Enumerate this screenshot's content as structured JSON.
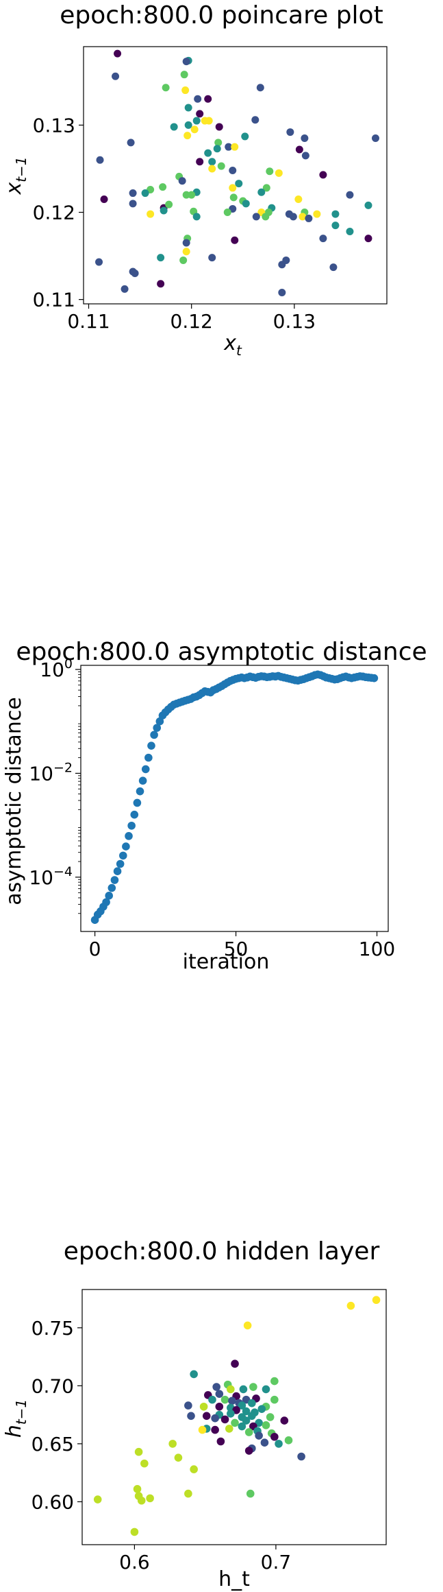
{
  "chart_data": [
    {
      "type": "scatter",
      "title": "epoch:800.0 poincare plot",
      "xlabel": "x_t",
      "ylabel": "x_{t-1}",
      "xlim": [
        0.1095,
        0.139
      ],
      "ylim": [
        0.1095,
        0.139
      ],
      "xticks": [
        "0.11",
        "0.12",
        "0.13"
      ],
      "yticks": [
        "0.11",
        "0.12",
        "0.13"
      ],
      "grid": false,
      "points": [
        [
          0.1128,
          0.1382,
          "#440154"
        ],
        [
          0.1126,
          0.1356,
          "#3b528b"
        ],
        [
          0.1197,
          0.1374,
          "#21918c"
        ],
        [
          0.1195,
          0.1373,
          "#3b528b"
        ],
        [
          0.1193,
          0.1358,
          "#5ec962"
        ],
        [
          0.1175,
          0.1343,
          "#5ec962"
        ],
        [
          0.1194,
          0.134,
          "#fde725"
        ],
        [
          0.1206,
          0.133,
          "#3b528b"
        ],
        [
          0.1216,
          0.133,
          "#440154"
        ],
        [
          0.1197,
          0.132,
          "#21918c"
        ],
        [
          0.1208,
          0.1313,
          "#440154"
        ],
        [
          0.1267,
          0.1343,
          "#3b528b"
        ],
        [
          0.1262,
          0.1306,
          "#3b528b"
        ],
        [
          0.1205,
          0.1305,
          "#21918c"
        ],
        [
          0.1213,
          0.1305,
          "#fde725"
        ],
        [
          0.1197,
          0.13,
          "#21918c"
        ],
        [
          0.1217,
          0.1305,
          "#fde725"
        ],
        [
          0.1227,
          0.1298,
          "#440154"
        ],
        [
          0.1203,
          0.1295,
          "#fde725"
        ],
        [
          0.1183,
          0.1298,
          "#21918c"
        ],
        [
          0.1196,
          0.1288,
          "#fde725"
        ],
        [
          0.1252,
          0.1287,
          "#21918c"
        ],
        [
          0.1226,
          0.128,
          "#5ec962"
        ],
        [
          0.1236,
          0.1275,
          "#3b528b"
        ],
        [
          0.1242,
          0.1275,
          "#fde725"
        ],
        [
          0.1225,
          0.1273,
          "#21918c"
        ],
        [
          0.1216,
          0.1268,
          "#21918c"
        ],
        [
          0.131,
          0.1285,
          "#3b528b"
        ],
        [
          0.1296,
          0.1292,
          "#3b528b"
        ],
        [
          0.1305,
          0.1272,
          "#440154"
        ],
        [
          0.1311,
          0.1265,
          "#3b528b"
        ],
        [
          0.1379,
          0.1285,
          "#3b528b"
        ],
        [
          0.1141,
          0.128,
          "#3b528b"
        ],
        [
          0.1111,
          0.126,
          "#3b528b"
        ],
        [
          0.1208,
          0.1258,
          "#440154"
        ],
        [
          0.122,
          0.1258,
          "#21918c"
        ],
        [
          0.1229,
          0.1253,
          "#5ec962"
        ],
        [
          0.122,
          0.125,
          "#fde725"
        ],
        [
          0.124,
          0.1248,
          "#3b528b"
        ],
        [
          0.1276,
          0.1247,
          "#5ec962"
        ],
        [
          0.1285,
          0.1245,
          "#fde725"
        ],
        [
          0.1328,
          0.1243,
          "#440154"
        ],
        [
          0.1188,
          0.1241,
          "#5ec962"
        ],
        [
          0.1191,
          0.1236,
          "#3b528b"
        ],
        [
          0.1246,
          0.1233,
          "#21918c"
        ],
        [
          0.124,
          0.1228,
          "#fde725"
        ],
        [
          0.1273,
          0.1228,
          "#5ec962"
        ],
        [
          0.1268,
          0.1223,
          "#21918c"
        ],
        [
          0.1205,
          0.1223,
          "#21918c"
        ],
        [
          0.1195,
          0.122,
          "#5ec962"
        ],
        [
          0.12,
          0.122,
          "#5ec962"
        ],
        [
          0.1172,
          0.1229,
          "#5ec962"
        ],
        [
          0.116,
          0.1226,
          "#5ec962"
        ],
        [
          0.1155,
          0.1222,
          "#21918c"
        ],
        [
          0.1143,
          0.1222,
          "#3b528b"
        ],
        [
          0.1115,
          0.1215,
          "#440154"
        ],
        [
          0.1143,
          0.121,
          "#3b528b"
        ],
        [
          0.1173,
          0.1205,
          "#440154"
        ],
        [
          0.1178,
          0.1209,
          "#5ec962"
        ],
        [
          0.1173,
          0.1202,
          "#21918c"
        ],
        [
          0.116,
          0.1198,
          "#fde725"
        ],
        [
          0.1241,
          0.1217,
          "#5ec962"
        ],
        [
          0.125,
          0.1213,
          "#5ec962"
        ],
        [
          0.124,
          0.1204,
          "#3b528b"
        ],
        [
          0.1235,
          0.12,
          "#5ec962"
        ],
        [
          0.1253,
          0.121,
          "#21918c"
        ],
        [
          0.1278,
          0.1205,
          "#21918c"
        ],
        [
          0.1275,
          0.12,
          "#5ec962"
        ],
        [
          0.1268,
          0.12,
          "#fde725"
        ],
        [
          0.1263,
          0.1195,
          "#3b528b"
        ],
        [
          0.1272,
          0.1195,
          "#5ec962"
        ],
        [
          0.1304,
          0.1215,
          "#fde725"
        ],
        [
          0.131,
          0.12,
          "#5ec962"
        ],
        [
          0.1308,
          0.1195,
          "#fde725"
        ],
        [
          0.1295,
          0.1198,
          "#3b528b"
        ],
        [
          0.1299,
          0.1195,
          "#3b528b"
        ],
        [
          0.1314,
          0.1193,
          "#3b528b"
        ],
        [
          0.1322,
          0.1198,
          "#fde725"
        ],
        [
          0.134,
          0.1198,
          "#21918c"
        ],
        [
          0.1354,
          0.122,
          "#3b528b"
        ],
        [
          0.1372,
          0.1208,
          "#21918c"
        ],
        [
          0.1202,
          0.1201,
          "#5ec962"
        ],
        [
          0.1205,
          0.1195,
          "#21918c"
        ],
        [
          0.1196,
          0.117,
          "#5ec962"
        ],
        [
          0.1195,
          0.1165,
          "#3b528b"
        ],
        [
          0.1195,
          0.1155,
          "#fde725"
        ],
        [
          0.122,
          0.1148,
          "#3b528b"
        ],
        [
          0.1242,
          0.1168,
          "#440154"
        ],
        [
          0.1328,
          0.117,
          "#3b528b"
        ],
        [
          0.134,
          0.1185,
          "#21918c"
        ],
        [
          0.1354,
          0.1178,
          "#21918c"
        ],
        [
          0.1372,
          0.117,
          "#440154"
        ],
        [
          0.111,
          0.1143,
          "#3b528b"
        ],
        [
          0.1145,
          0.113,
          "#3b528b"
        ],
        [
          0.1143,
          0.1132,
          "#3b528b"
        ],
        [
          0.117,
          0.1148,
          "#21918c"
        ],
        [
          0.1192,
          0.1145,
          "#5ec962"
        ],
        [
          0.1288,
          0.114,
          "#3b528b"
        ],
        [
          0.1292,
          0.1145,
          "#3b528b"
        ],
        [
          0.1338,
          0.1137,
          "#3b528b"
        ],
        [
          0.1135,
          0.1112,
          "#3b528b"
        ],
        [
          0.117,
          0.1118,
          "#440154"
        ],
        [
          0.1288,
          0.1108,
          "#3b528b"
        ]
      ]
    },
    {
      "type": "scatter",
      "title": "epoch:800.0 asymptotic distance",
      "xlabel": "iteration",
      "ylabel": "asymptotic distance",
      "yscale": "log",
      "xlim": [
        -5,
        104
      ],
      "ylim": [
        9e-06,
        1.2
      ],
      "xticks": [
        "0",
        "50",
        "100"
      ],
      "yticks": [
        "10^0",
        "10^-2",
        "10^-4"
      ],
      "color": "#1f77b4",
      "grid": false,
      "x": [
        0,
        1,
        2,
        3,
        4,
        5,
        6,
        7,
        8,
        9,
        10,
        11,
        12,
        13,
        14,
        15,
        16,
        17,
        18,
        19,
        20,
        21,
        22,
        23,
        24,
        25,
        26,
        27,
        28,
        29,
        30,
        31,
        32,
        33,
        34,
        35,
        36,
        37,
        38,
        39,
        40,
        41,
        42,
        43,
        44,
        45,
        46,
        47,
        48,
        49,
        50,
        51,
        52,
        53,
        54,
        55,
        56,
        57,
        58,
        59,
        60,
        61,
        62,
        63,
        64,
        65,
        66,
        67,
        68,
        69,
        70,
        71,
        72,
        73,
        74,
        75,
        76,
        77,
        78,
        79,
        80,
        81,
        82,
        83,
        84,
        85,
        86,
        87,
        88,
        89,
        90,
        91,
        92,
        93,
        94,
        95,
        96,
        97,
        98,
        99
      ],
      "y": [
        1.5e-05,
        1.9e-05,
        2.2e-05,
        2.7e-05,
        3.3e-05,
        4.4e-05,
        6.2e-05,
        8.8e-05,
        0.00013,
        0.00018,
        0.00026,
        0.00039,
        0.00062,
        0.00098,
        0.0016,
        0.0027,
        0.0045,
        0.0072,
        0.012,
        0.02,
        0.034,
        0.055,
        0.075,
        0.1,
        0.13,
        0.15,
        0.17,
        0.19,
        0.21,
        0.22,
        0.23,
        0.24,
        0.25,
        0.26,
        0.27,
        0.29,
        0.3,
        0.32,
        0.35,
        0.38,
        0.37,
        0.36,
        0.4,
        0.42,
        0.45,
        0.48,
        0.52,
        0.56,
        0.6,
        0.63,
        0.66,
        0.68,
        0.7,
        0.68,
        0.7,
        0.73,
        0.71,
        0.69,
        0.72,
        0.74,
        0.73,
        0.71,
        0.72,
        0.74,
        0.73,
        0.75,
        0.72,
        0.7,
        0.68,
        0.66,
        0.64,
        0.62,
        0.61,
        0.63,
        0.65,
        0.68,
        0.71,
        0.74,
        0.78,
        0.8,
        0.78,
        0.74,
        0.7,
        0.68,
        0.66,
        0.64,
        0.65,
        0.68,
        0.71,
        0.73,
        0.7,
        0.68,
        0.7,
        0.72,
        0.74,
        0.73,
        0.71,
        0.7,
        0.69,
        0.68
      ]
    },
    {
      "type": "scatter",
      "title": "epoch:800.0 hidden layer",
      "xlabel": "h_t",
      "ylabel": "h_{t-1}",
      "xlim": [
        0.563,
        0.778
      ],
      "ylim": [
        0.563,
        0.783
      ],
      "xticks": [
        "0.6",
        "0.7"
      ],
      "yticks": [
        "0.60",
        "0.65",
        "0.70",
        "0.75"
      ],
      "grid": false,
      "points": [
        [
          0.771,
          0.774,
          "#fde725"
        ],
        [
          0.753,
          0.769,
          "#fde725"
        ],
        [
          0.68,
          0.752,
          "#fde725"
        ],
        [
          0.671,
          0.719,
          "#440154"
        ],
        [
          0.642,
          0.71,
          "#21918c"
        ],
        [
          0.699,
          0.704,
          "#5ec962"
        ],
        [
          0.666,
          0.701,
          "#5ec962"
        ],
        [
          0.658,
          0.699,
          "#3b528b"
        ],
        [
          0.668,
          0.697,
          "#bddf26"
        ],
        [
          0.677,
          0.697,
          "#21918c"
        ],
        [
          0.684,
          0.699,
          "#5ec962"
        ],
        [
          0.693,
          0.697,
          "#21918c"
        ],
        [
          0.652,
          0.692,
          "#440154"
        ],
        [
          0.66,
          0.693,
          "#3b528b"
        ],
        [
          0.672,
          0.691,
          "#440154"
        ],
        [
          0.655,
          0.688,
          "#21918c"
        ],
        [
          0.664,
          0.688,
          "#5ec962"
        ],
        [
          0.669,
          0.687,
          "#3b528b"
        ],
        [
          0.679,
          0.688,
          "#3b528b"
        ],
        [
          0.686,
          0.689,
          "#440154"
        ],
        [
          0.699,
          0.688,
          "#5ec962"
        ],
        [
          0.674,
          0.685,
          "#3b528b"
        ],
        [
          0.683,
          0.685,
          "#21918c"
        ],
        [
          0.676,
          0.683,
          "#21918c"
        ],
        [
          0.66,
          0.682,
          "#440154"
        ],
        [
          0.668,
          0.681,
          "#21918c"
        ],
        [
          0.638,
          0.683,
          "#3b528b"
        ],
        [
          0.649,
          0.682,
          "#bddf26"
        ],
        [
          0.693,
          0.682,
          "#5ec962"
        ],
        [
          0.69,
          0.68,
          "#21918c"
        ],
        [
          0.672,
          0.679,
          "#440154"
        ],
        [
          0.679,
          0.678,
          "#21918c"
        ],
        [
          0.685,
          0.677,
          "#21918c"
        ],
        [
          0.668,
          0.676,
          "#21918c"
        ],
        [
          0.66,
          0.675,
          "#21918c"
        ],
        [
          0.651,
          0.674,
          "#440154"
        ],
        [
          0.676,
          0.673,
          "#21918c"
        ],
        [
          0.683,
          0.674,
          "#21918c"
        ],
        [
          0.696,
          0.673,
          "#5ec962"
        ],
        [
          0.64,
          0.674,
          "#3b528b"
        ],
        [
          0.657,
          0.672,
          "#3b528b"
        ],
        [
          0.664,
          0.671,
          "#440154"
        ],
        [
          0.679,
          0.67,
          "#21918c"
        ],
        [
          0.688,
          0.668,
          "#21918c"
        ],
        [
          0.706,
          0.67,
          "#440154"
        ],
        [
          0.671,
          0.668,
          "#5ec962"
        ],
        [
          0.693,
          0.666,
          "#5ec962"
        ],
        [
          0.684,
          0.665,
          "#440154"
        ],
        [
          0.676,
          0.665,
          "#21918c"
        ],
        [
          0.651,
          0.663,
          "#21918c"
        ],
        [
          0.667,
          0.663,
          "#bddf26"
        ],
        [
          0.648,
          0.662,
          "#fde725"
        ],
        [
          0.657,
          0.662,
          "#440154"
        ],
        [
          0.687,
          0.661,
          "#21918c"
        ],
        [
          0.681,
          0.66,
          "#5ec962"
        ],
        [
          0.697,
          0.659,
          "#5ec962"
        ],
        [
          0.688,
          0.657,
          "#3b528b"
        ],
        [
          0.699,
          0.656,
          "#440154"
        ],
        [
          0.709,
          0.653,
          "#5ec962"
        ],
        [
          0.661,
          0.652,
          "#440154"
        ],
        [
          0.692,
          0.651,
          "#3b528b"
        ],
        [
          0.702,
          0.65,
          "#21918c"
        ],
        [
          0.627,
          0.65,
          "#bddf26"
        ],
        [
          0.683,
          0.646,
          "#3b528b"
        ],
        [
          0.681,
          0.644,
          "#440154"
        ],
        [
          0.718,
          0.639,
          "#3b528b"
        ],
        [
          0.603,
          0.643,
          "#bddf26"
        ],
        [
          0.631,
          0.638,
          "#bddf26"
        ],
        [
          0.607,
          0.633,
          "#bddf26"
        ],
        [
          0.642,
          0.628,
          "#bddf26"
        ],
        [
          0.574,
          0.602,
          "#bddf26"
        ],
        [
          0.602,
          0.611,
          "#bddf26"
        ],
        [
          0.603,
          0.605,
          "#bddf26"
        ],
        [
          0.605,
          0.601,
          "#bddf26"
        ],
        [
          0.611,
          0.603,
          "#bddf26"
        ],
        [
          0.638,
          0.607,
          "#bddf26"
        ],
        [
          0.682,
          0.607,
          "#5ec962"
        ],
        [
          0.6,
          0.574,
          "#bddf26"
        ]
      ]
    }
  ]
}
